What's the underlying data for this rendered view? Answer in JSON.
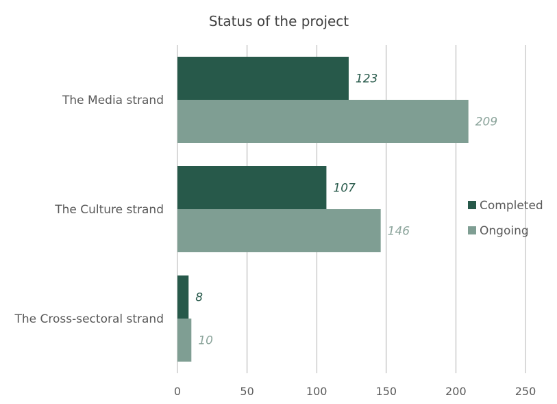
{
  "chart_data": {
    "type": "bar",
    "orientation": "horizontal",
    "title": "Status of the project",
    "categories": [
      "The Media strand",
      "The Culture strand",
      "The Cross-sectoral strand"
    ],
    "series": [
      {
        "name": "Completed",
        "color": "#27594a",
        "label_color": "#27594a",
        "values": [
          123,
          107,
          8
        ]
      },
      {
        "name": "Ongoing",
        "color": "#7f9e93",
        "label_color": "#8aa39a",
        "values": [
          209,
          146,
          10
        ]
      }
    ],
    "xlim": [
      0,
      250
    ],
    "xticks": [
      0,
      50,
      100,
      150,
      200,
      250
    ],
    "grid": true,
    "legend_position": "right"
  }
}
